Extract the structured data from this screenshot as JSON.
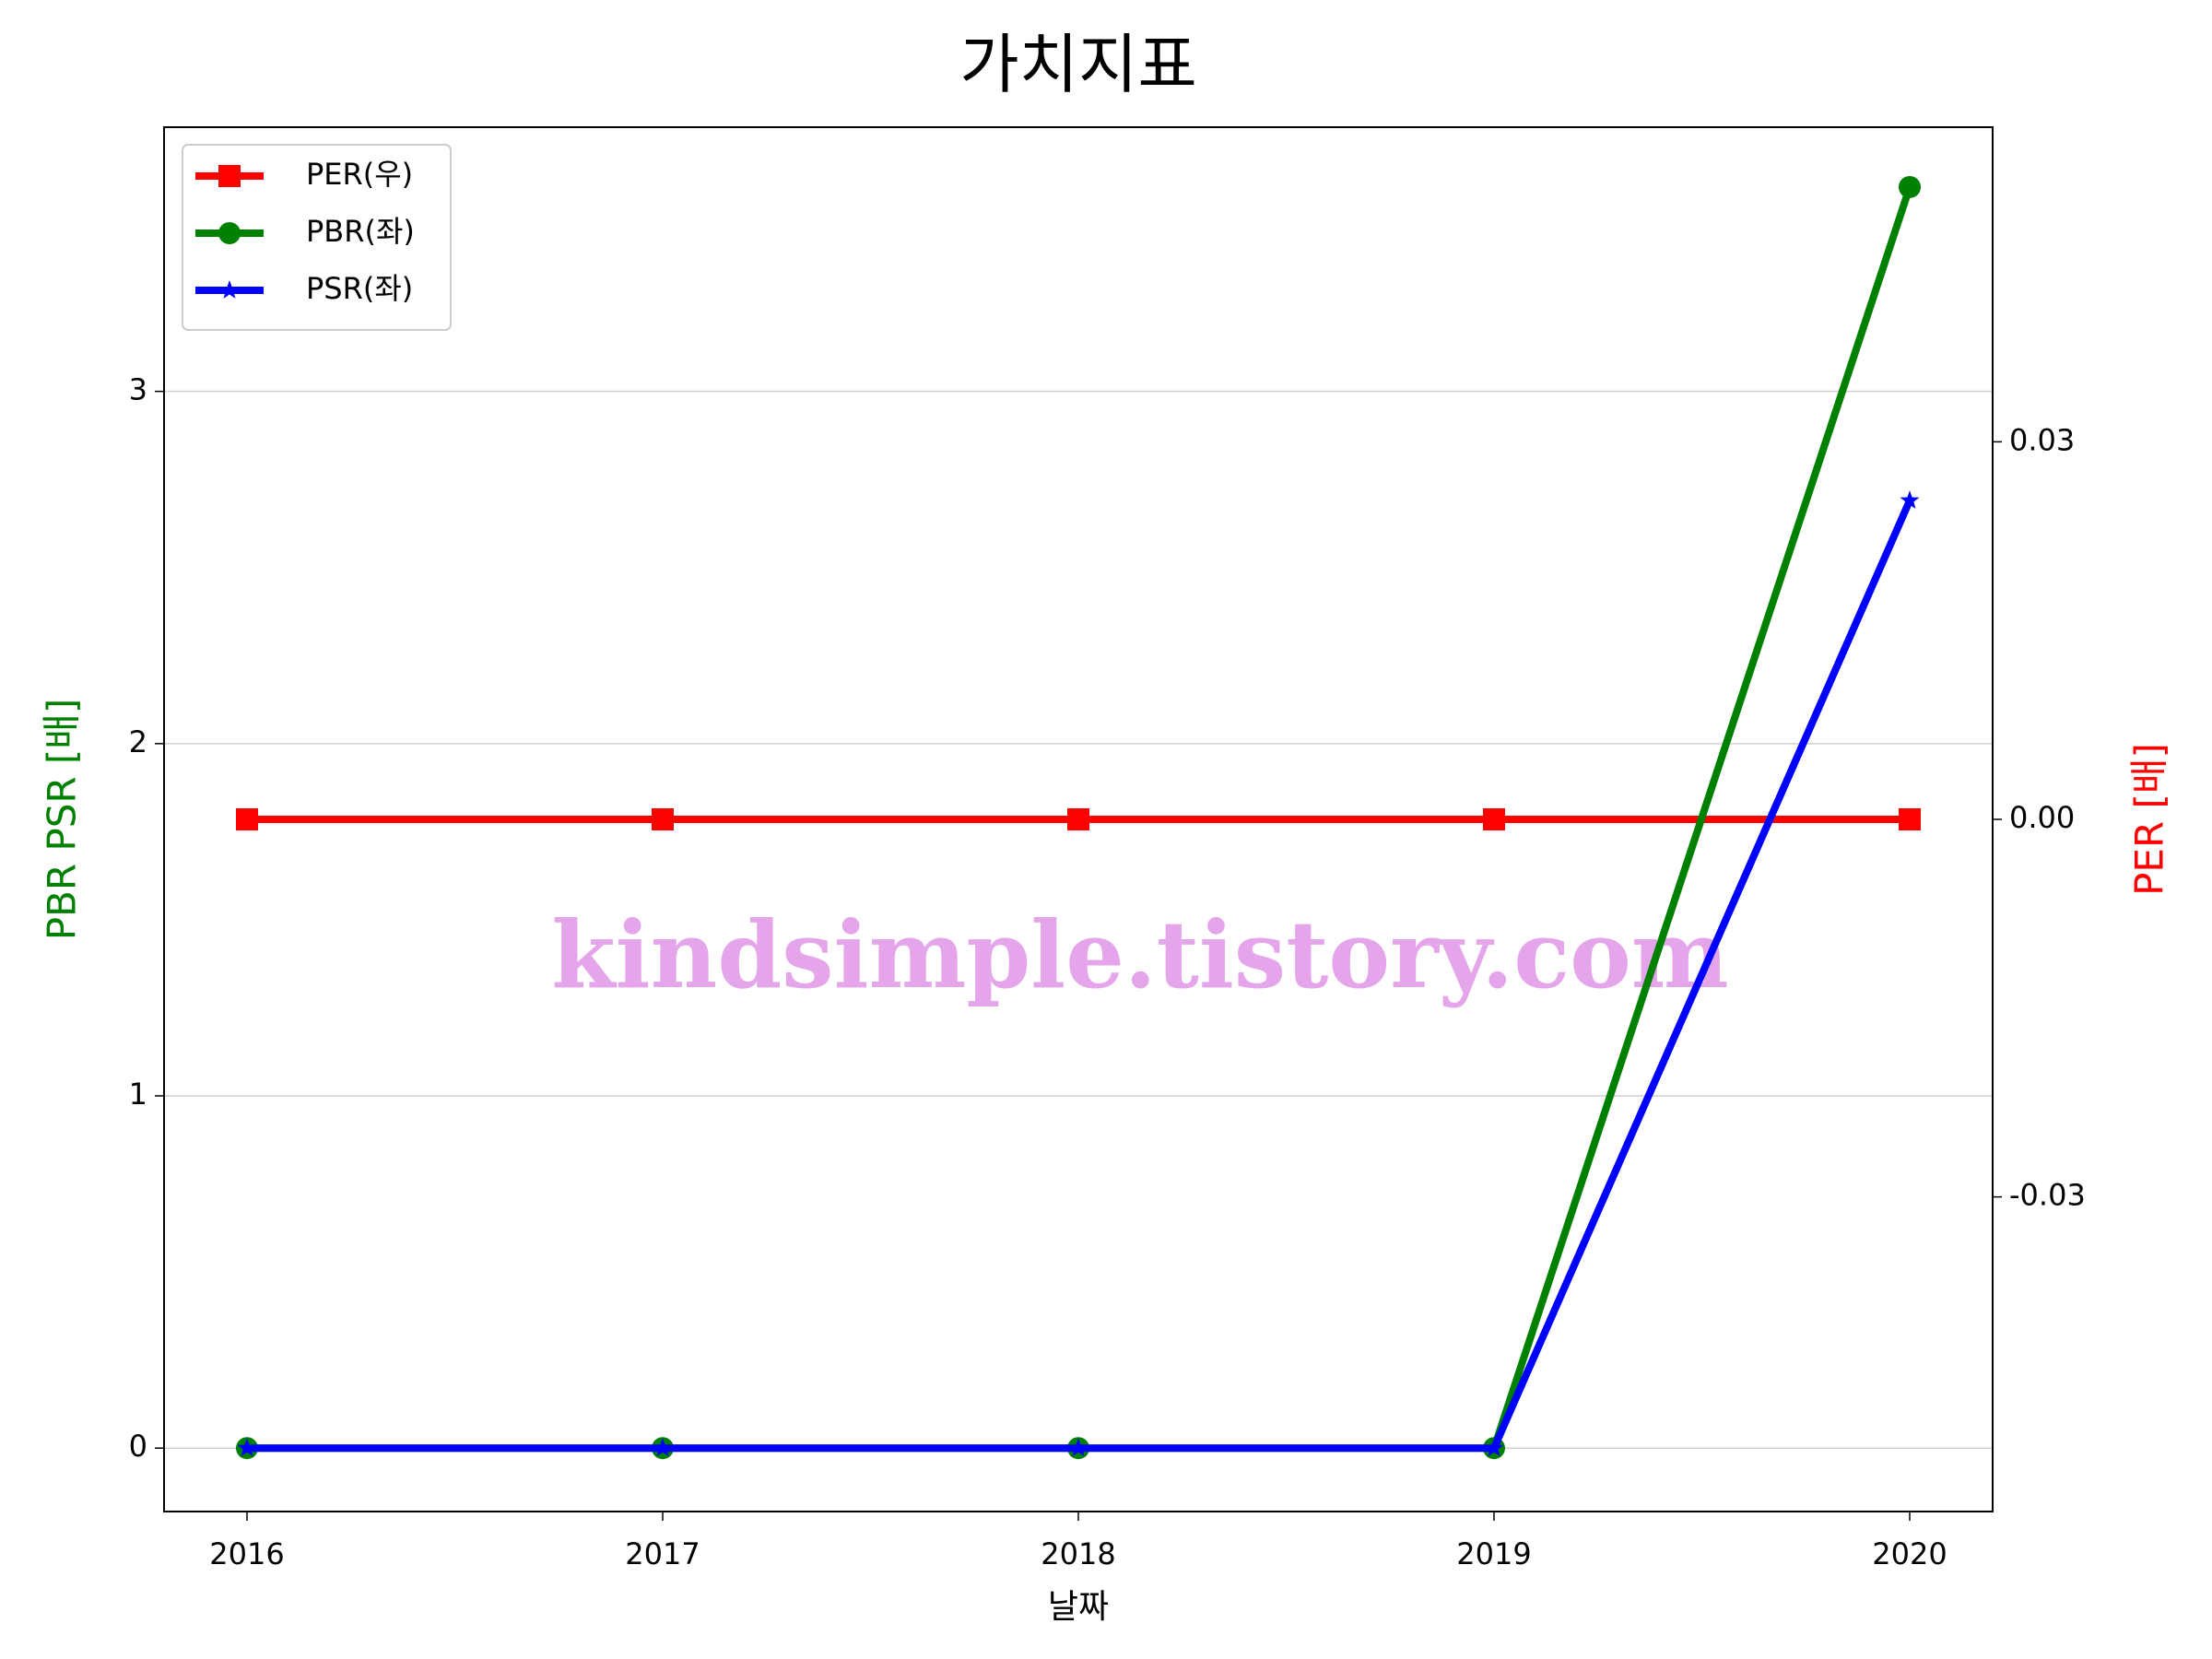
{
  "chart_data": {
    "type": "line",
    "title": "가치지표",
    "x_label": "날짜",
    "y_label": "PBR PSR [배]",
    "y2_label": "PER [배]",
    "watermark": "kindsimple.tistory.com",
    "categories": [
      "2016",
      "2017",
      "2018",
      "2019",
      "2020"
    ],
    "series": [
      {
        "name": "PER(우)",
        "color": "#ff0000",
        "marker": "square",
        "axis": "y2",
        "values": [
          0,
          0,
          0,
          0,
          0
        ]
      },
      {
        "name": "PBR(좌)",
        "color": "#008000",
        "marker": "circle",
        "values": [
          0,
          0,
          0,
          0,
          3.58
        ]
      },
      {
        "name": "PSR(좌)",
        "color": "#0000ff",
        "marker": "star",
        "values": [
          0,
          0,
          0,
          0,
          2.69
        ]
      }
    ],
    "ylim": [
      -0.18,
      3.75
    ],
    "yticks": [
      0,
      1,
      2,
      3
    ],
    "y2lim": [
      -0.055,
      0.055
    ],
    "y2ticks": [
      0.03,
      {
        "value": 0,
        "label": "0.00"
      },
      -0.03
    ],
    "grid": true,
    "legend": "upper left"
  }
}
